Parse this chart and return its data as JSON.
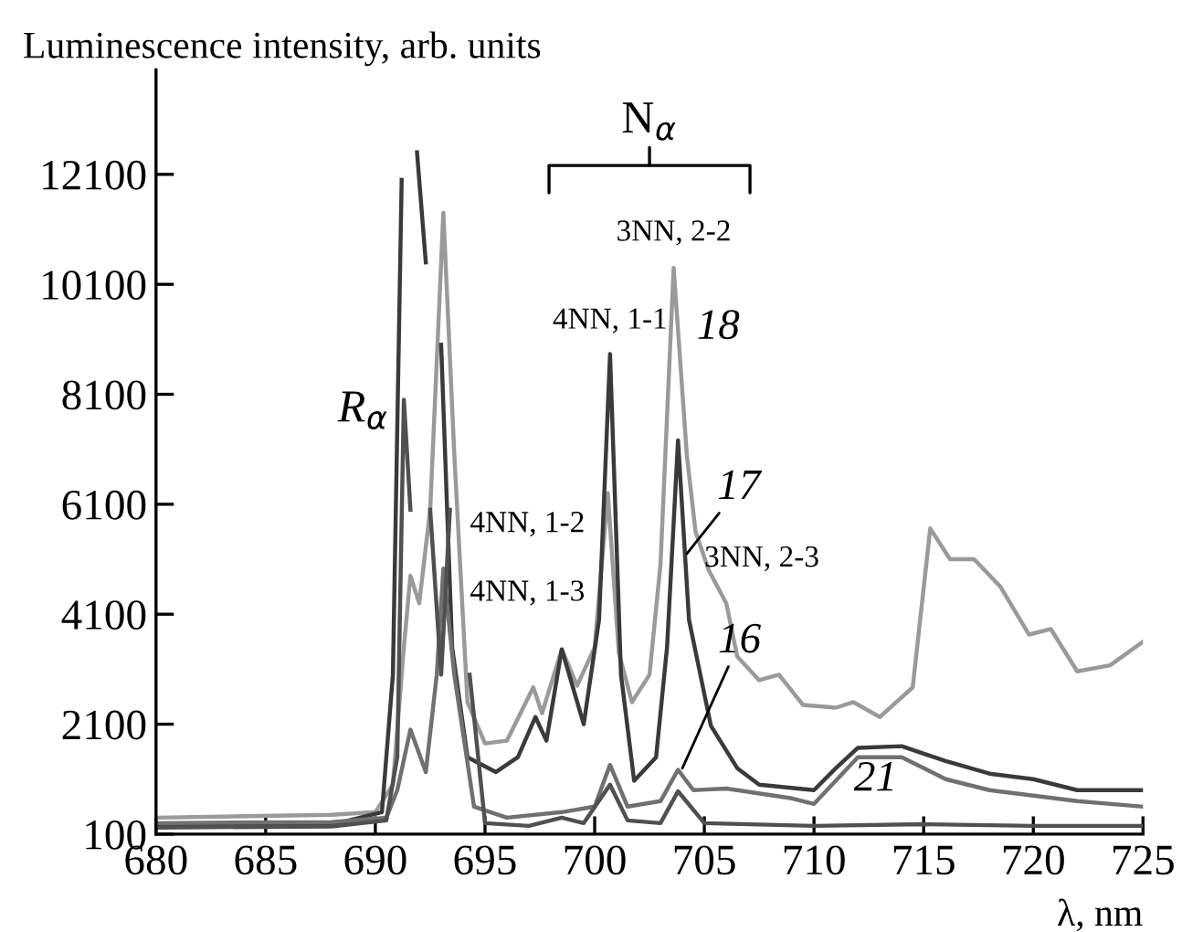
{
  "chart_data": {
    "type": "line",
    "xlabel": "λ, nm",
    "ylabel": "Luminescence intensity, arb. units",
    "xlim": [
      680,
      725
    ],
    "xticks": [
      680,
      685,
      690,
      695,
      700,
      705,
      710,
      715,
      720,
      725
    ],
    "ylim": [
      100,
      14000
    ],
    "yticks": [
      100,
      2100,
      4100,
      6100,
      8100,
      10100,
      12100
    ],
    "grid": false,
    "legend": false,
    "marker": "none",
    "line_style": "solid",
    "series": [
      {
        "color": "#9a9a9a",
        "x": [
          680,
          688,
          690,
          690.8,
          691.3,
          691.6,
          692.0,
          692.5,
          693.1,
          693.6,
          694.2,
          695.0,
          696.0,
          697.2,
          697.6,
          698.5,
          699.2,
          700.0,
          700.6,
          701.1,
          701.7,
          702.5,
          703.0,
          703.6,
          704.2,
          704.6,
          705.2,
          706.0,
          706.5,
          707.5,
          708.4,
          709.5,
          711.0,
          711.8,
          713.0,
          714.5,
          715.3,
          716.2,
          717.3,
          718.5,
          719.8,
          720.8,
          722.0,
          723.5,
          725.0
        ],
        "values": [
          400,
          450,
          500,
          1000,
          3500,
          4800,
          4300,
          6000,
          11400,
          7000,
          2500,
          1750,
          1800,
          2770,
          2300,
          3460,
          2800,
          3500,
          6300,
          3400,
          2500,
          3000,
          5000,
          10400,
          7000,
          5600,
          4900,
          4300,
          3330,
          2900,
          3000,
          2450,
          2400,
          2500,
          2230,
          2770,
          5660,
          5100,
          5100,
          4600,
          3730,
          3830,
          3060,
          3170,
          3600
        ]
      },
      {
        "color": "#3a3a3a",
        "x": [
          680,
          688,
          690.3,
          690.8,
          691.2,
          691.5,
          691.9,
          692.3,
          692.6,
          693.0,
          693.5,
          694.2,
          695.5,
          696.5,
          697.3,
          697.8,
          698.5,
          699.5,
          700.2,
          700.7,
          701.2,
          701.8,
          702.8,
          703.3,
          703.8,
          704.3,
          705.3,
          706.5,
          707.5,
          710.0,
          711.0,
          712.0,
          714.0,
          716.0,
          718.0,
          720.0,
          722.0,
          725.0
        ],
        "values": [
          250,
          270,
          500,
          3000,
          12000,
          null,
          12500,
          10500,
          null,
          9000,
          3500,
          1500,
          1230,
          1500,
          2230,
          1800,
          3460,
          2100,
          4000,
          8830,
          3000,
          1070,
          1500,
          3500,
          7260,
          4000,
          2070,
          1300,
          1000,
          900,
          1300,
          1670,
          1700,
          1430,
          1200,
          1100,
          900,
          900
        ]
      },
      {
        "color": "#707070",
        "x": [
          680,
          688,
          690.5,
          691.0,
          691.6,
          692.3,
          692.8,
          693.1,
          693.6,
          694.5,
          696.0,
          698.5,
          700.0,
          700.7,
          701.5,
          703.0,
          703.8,
          704.5,
          706.0,
          709.0,
          710.0,
          712.0,
          714.0,
          716.0,
          718.0,
          720.0,
          722.0,
          725.0
        ],
        "values": [
          300,
          320,
          400,
          900,
          2000,
          1230,
          3000,
          4930,
          3000,
          600,
          400,
          500,
          600,
          1360,
          600,
          700,
          1270,
          900,
          930,
          750,
          650,
          1500,
          1500,
          1100,
          900,
          800,
          700,
          600
        ]
      },
      {
        "color": "#505050",
        "x": [
          680,
          688,
          690.5,
          691.0,
          691.3,
          691.6,
          692.1,
          692.5,
          693.0,
          693.4,
          693.8,
          694.3,
          695.0,
          697.0,
          698.5,
          699.5,
          700.7,
          701.5,
          703.0,
          703.8,
          705.0,
          710.0,
          715.0,
          720.0,
          725.0
        ],
        "values": [
          220,
          240,
          350,
          1500,
          8000,
          6000,
          null,
          6000,
          3000,
          6000,
          null,
          3000,
          300,
          250,
          400,
          300,
          1000,
          350,
          300,
          880,
          300,
          250,
          280,
          250,
          250
        ]
      }
    ],
    "annotations": [
      {
        "text": "18",
        "x": 704.3,
        "y": 9300
      },
      {
        "text": "17",
        "x": 704.2,
        "y": 5200
      },
      {
        "text": "16",
        "x": 704.0,
        "y": 1300
      },
      "21",
      {
        "text": "R$_{α}$",
        "x": 690.6,
        "y": 7800
      },
      "N$_{α}$",
      {
        "text": "4NN, 1-1",
        "x": 700.7,
        "y": 8900
      },
      {
        "text": "3NN, 2-2",
        "x": 703.6,
        "y": 10500
      },
      "4NN, 1-2",
      "4NN, 1-3",
      {
        "text": "3NN, 2-3",
        "x": 705.0,
        "y": 5100
      }
    ]
  }
}
